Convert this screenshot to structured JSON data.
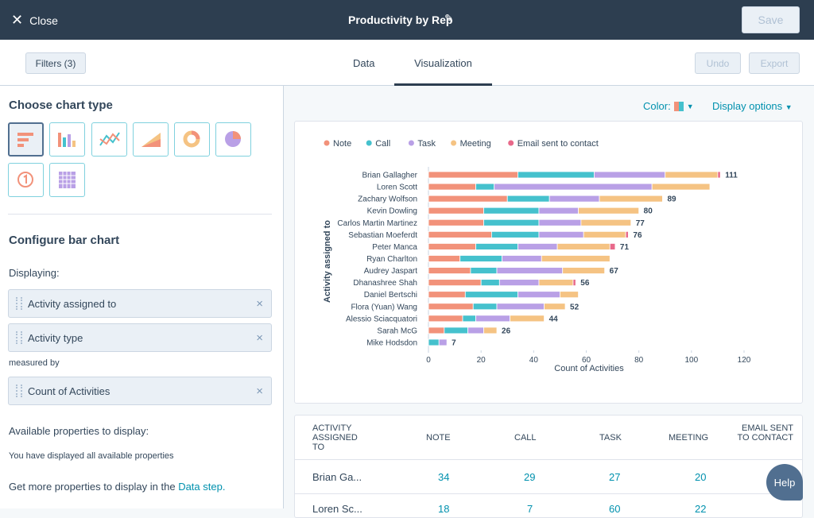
{
  "header": {
    "close": "Close",
    "title": "Productivity by Rep",
    "save": "Save"
  },
  "toolbar": {
    "filters": "Filters (3)",
    "tabs": [
      "Data",
      "Visualization"
    ],
    "undo": "Undo",
    "export": "Export"
  },
  "sidebar": {
    "choose_title": "Choose chart type",
    "configure_title": "Configure bar chart",
    "displaying": "Displaying:",
    "properties": [
      "Activity assigned to",
      "Activity type"
    ],
    "measured_by": "measured by",
    "measure": "Count of Activities",
    "available_title": "Available properties to display:",
    "available_note": "You have displayed all available properties",
    "more_text": "Get more properties to display in the",
    "more_link": "Data step."
  },
  "chart_controls": {
    "color": "Color:",
    "display_options": "Display options"
  },
  "chart_data": {
    "type": "stacked-horizontal-bar",
    "y_label": "Activity assigned to",
    "x_label": "Count of Activities",
    "categories": [
      "Brian Gallagher",
      "Loren Scott",
      "Zachary Wolfson",
      "Kevin Dowling",
      "Carlos Martin Martinez",
      "Sebastian Moeferdt",
      "Peter Manca",
      "Ryan Charlton",
      "Audrey Jaspart",
      "Dhanashree Shah",
      "Daniel Bertschi",
      "Flora (Yuan) Wang",
      "Alessio Sciacquatori",
      "Sarah McG",
      "Mike Hodsdon"
    ],
    "series": [
      {
        "name": "Note",
        "color": "#f2927a",
        "values": [
          34,
          18,
          30,
          21,
          21,
          24,
          18,
          12,
          16,
          20,
          14,
          17,
          13,
          6,
          0
        ]
      },
      {
        "name": "Call",
        "color": "#45c1cd",
        "values": [
          29,
          7,
          16,
          21,
          21,
          18,
          16,
          16,
          10,
          7,
          20,
          9,
          5,
          9,
          4
        ]
      },
      {
        "name": "Task",
        "color": "#b9a0e6",
        "values": [
          27,
          60,
          19,
          15,
          16,
          17,
          15,
          15,
          25,
          15,
          16,
          18,
          13,
          6,
          3
        ]
      },
      {
        "name": "Meeting",
        "color": "#f5c383",
        "values": [
          20,
          22,
          24,
          23,
          19,
          16,
          20,
          26,
          16,
          13,
          7,
          8,
          13,
          5,
          0
        ]
      },
      {
        "name": "Email sent to contact",
        "color": "#e8698a",
        "values": [
          1,
          0,
          0,
          0,
          0,
          1,
          2,
          0,
          0,
          1,
          0,
          0,
          0,
          0,
          0
        ]
      }
    ],
    "total_labels": [
      111,
      null,
      89,
      80,
      77,
      76,
      71,
      null,
      67,
      56,
      null,
      52,
      44,
      26,
      7
    ],
    "xlim": [
      0,
      120
    ],
    "xticks": [
      0,
      20,
      40,
      60,
      80,
      100,
      120
    ],
    "legend": "top"
  },
  "table": {
    "headers": [
      "ACTIVITY ASSIGNED TO",
      "NOTE",
      "CALL",
      "TASK",
      "MEETING",
      "EMAIL SENT TO CONTACT"
    ],
    "rows": [
      [
        "Brian Ga...",
        "34",
        "29",
        "27",
        "20"
      ],
      [
        "Loren Sc...",
        "18",
        "7",
        "60",
        "22"
      ]
    ]
  },
  "help": "Help"
}
